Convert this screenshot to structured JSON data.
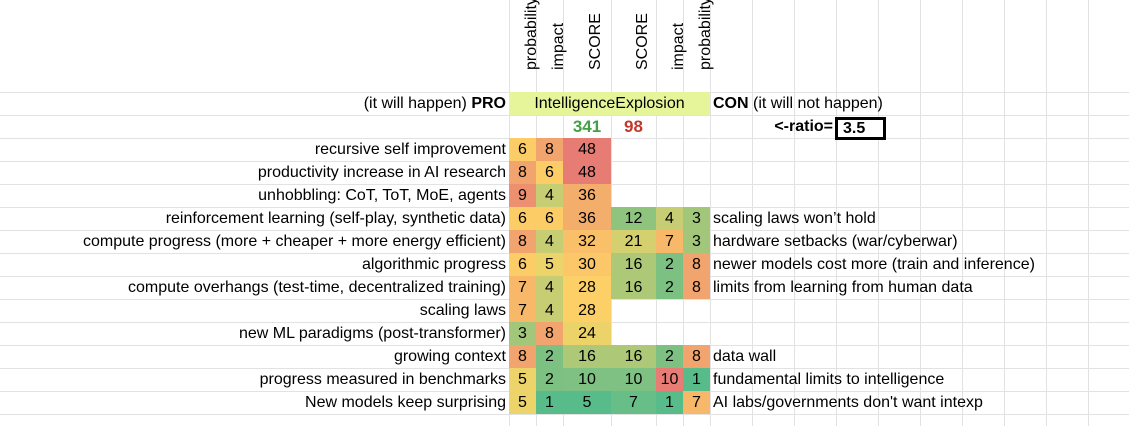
{
  "headers": [
    "probability",
    "impact",
    "SCORE",
    "SCORE",
    "impact",
    "probability"
  ],
  "title_row": {
    "pro_prefix": "(it will happen)",
    "pro_label": "PRO",
    "center_label": "IntelligenceExplosion",
    "con_label": "CON",
    "con_suffix": "(it will not happen)"
  },
  "totals": {
    "pro_score": "341",
    "con_score": "98",
    "ratio_label": "<-ratio=",
    "ratio_value": "3.5"
  },
  "colors": {
    "title_band": "#e6f59a",
    "pro_total": "#43a047",
    "con_total": "#c0392b"
  },
  "rows": [
    {
      "pro": "recursive self improvement",
      "p": "6",
      "i": "8",
      "s": "48",
      "cs": "",
      "ci": "",
      "cp": "",
      "con": ""
    },
    {
      "pro": "productivity increase in AI research",
      "p": "8",
      "i": "6",
      "s": "48",
      "cs": "",
      "ci": "",
      "cp": "",
      "con": ""
    },
    {
      "pro": "unhobbling: CoT, ToT, MoE, agents",
      "p": "9",
      "i": "4",
      "s": "36",
      "cs": "",
      "ci": "",
      "cp": "",
      "con": ""
    },
    {
      "pro": "reinforcement learning (self-play, synthetic data)",
      "p": "6",
      "i": "6",
      "s": "36",
      "cs": "12",
      "ci": "4",
      "cp": "3",
      "con": "scaling laws won’t hold"
    },
    {
      "pro": "compute progress (more + cheaper + more energy efficient)",
      "p": "8",
      "i": "4",
      "s": "32",
      "cs": "21",
      "ci": "7",
      "cp": "3",
      "con": "hardware setbacks (war/cyberwar)"
    },
    {
      "pro": "algorithmic progress",
      "p": "6",
      "i": "5",
      "s": "30",
      "cs": "16",
      "ci": "2",
      "cp": "8",
      "con": "newer models cost more (train and inference)"
    },
    {
      "pro": "compute overhangs (test-time, decentralized training)",
      "p": "7",
      "i": "4",
      "s": "28",
      "cs": "16",
      "ci": "2",
      "cp": "8",
      "con": "limits from learning from human data"
    },
    {
      "pro": "scaling laws",
      "p": "7",
      "i": "4",
      "s": "28",
      "cs": "",
      "ci": "",
      "cp": "",
      "con": ""
    },
    {
      "pro": "new ML paradigms (post-transformer)",
      "p": "3",
      "i": "8",
      "s": "24",
      "cs": "",
      "ci": "",
      "cp": "",
      "con": ""
    },
    {
      "pro": "growing context",
      "p": "8",
      "i": "2",
      "s": "16",
      "cs": "16",
      "ci": "2",
      "cp": "8",
      "con": "data wall"
    },
    {
      "pro": "progress measured in benchmarks",
      "p": "5",
      "i": "2",
      "s": "10",
      "cs": "10",
      "ci": "10",
      "cp": "1",
      "con": "fundamental limits to intelligence"
    },
    {
      "pro": "New models keep surprising",
      "p": "5",
      "i": "1",
      "s": "5",
      "cs": "7",
      "ci": "1",
      "cp": "7",
      "con": "AI labs/governments don't want intexp"
    }
  ]
}
